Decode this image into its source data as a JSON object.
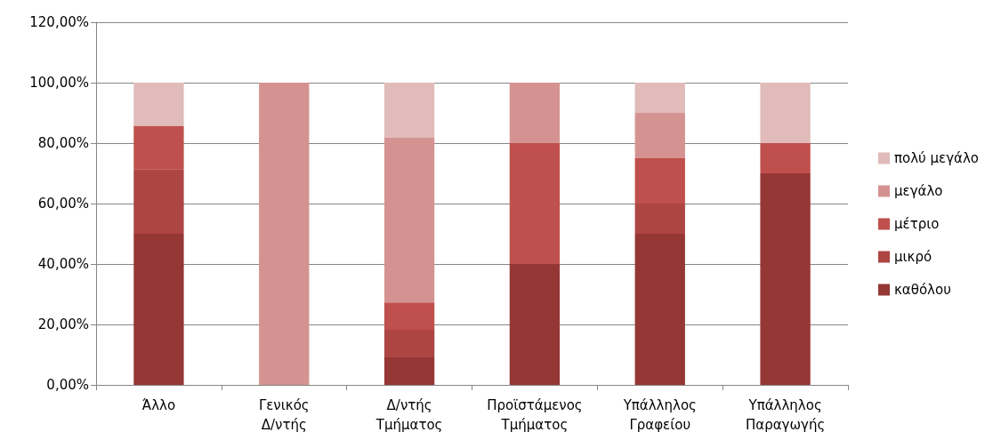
{
  "chart_data": {
    "type": "bar",
    "stacked": true,
    "categories": [
      "Άλλο",
      "Γενικός Δ/ντής",
      "Δ/ντής Τμήματος",
      "Προϊστάμενος Τμήματος",
      "Υπάλληλος Γραφείου",
      "Υπάλληλος Παραγωγής"
    ],
    "series": [
      {
        "name": "καθόλου",
        "color": "#953735",
        "values": [
          50,
          0,
          9.1,
          40,
          50,
          70
        ]
      },
      {
        "name": "μικρό",
        "color": "#ad4543",
        "values": [
          21.4,
          0,
          9.1,
          0,
          10,
          0
        ]
      },
      {
        "name": "μέτριο",
        "color": "#c0504d",
        "values": [
          14.3,
          0,
          9.1,
          40,
          15,
          10
        ]
      },
      {
        "name": "μεγάλο",
        "color": "#d49391",
        "values": [
          0,
          100,
          54.5,
          20,
          15,
          0
        ]
      },
      {
        "name": "πολύ μεγάλο",
        "color": "#e0bbba",
        "values": [
          14.3,
          0,
          18.2,
          0,
          10,
          20
        ]
      }
    ],
    "ylim": [
      0,
      120
    ],
    "yticks": [
      {
        "value": 0,
        "label": "0,00%"
      },
      {
        "value": 20,
        "label": "20,00%"
      },
      {
        "value": 40,
        "label": "40,00%"
      },
      {
        "value": 60,
        "label": "60,00%"
      },
      {
        "value": 80,
        "label": "80,00%"
      },
      {
        "value": 100,
        "label": "100,00%"
      },
      {
        "value": 120,
        "label": "120,00%"
      }
    ],
    "grid": "y",
    "legend": "right"
  }
}
